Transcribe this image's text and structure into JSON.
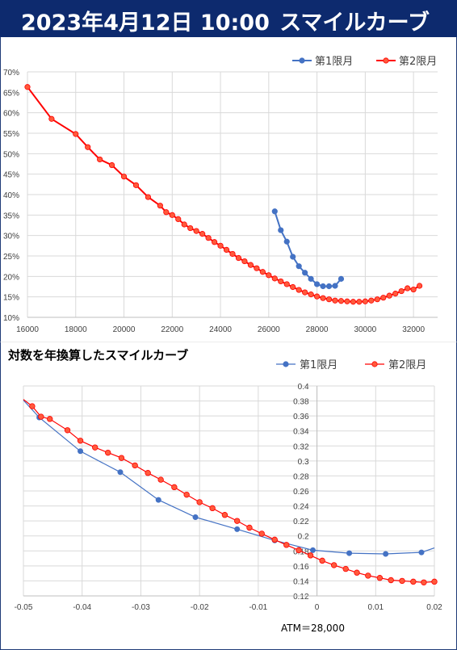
{
  "header": {
    "date": "2023年4月12日 10:00",
    "title": "スマイルカーブ"
  },
  "colors": {
    "header_bg": "#0d2a6e",
    "series1": "#4472c4",
    "series2": "#ff0000",
    "series2_fill": "#ff5a3c",
    "grid": "#d9d9d9"
  },
  "chart_data": [
    {
      "type": "line",
      "title": "",
      "xlim": [
        16000,
        33000
      ],
      "ylim": [
        0.1,
        0.7
      ],
      "x_ticks": [
        "16000",
        "18000",
        "20000",
        "22000",
        "24000",
        "26000",
        "28000",
        "30000",
        "32000"
      ],
      "y_ticks": [
        "10%",
        "15%",
        "20%",
        "25%",
        "30%",
        "35%",
        "40%",
        "45%",
        "50%",
        "55%",
        "60%",
        "65%",
        "70%"
      ],
      "legend": "top-right",
      "grid": true,
      "series": [
        {
          "name": "第1限月",
          "x": [
            26250,
            26500,
            26750,
            27000,
            27250,
            27500,
            27750,
            28000,
            28250,
            28500,
            28750,
            29000
          ],
          "y": [
            0.359,
            0.313,
            0.285,
            0.248,
            0.225,
            0.209,
            0.194,
            0.181,
            0.176,
            0.176,
            0.177,
            0.194
          ]
        },
        {
          "name": "第2限月",
          "x": [
            16000,
            17000,
            18000,
            18500,
            19000,
            19500,
            20000,
            20500,
            21000,
            21500,
            21750,
            22000,
            22250,
            22500,
            22750,
            23000,
            23250,
            23500,
            23750,
            24000,
            24250,
            24500,
            24750,
            25000,
            25250,
            25500,
            25750,
            26000,
            26250,
            26500,
            26750,
            27000,
            27250,
            27500,
            27750,
            28000,
            28250,
            28500,
            28750,
            29000,
            29250,
            29500,
            29750,
            30000,
            30250,
            30500,
            30750,
            31000,
            31250,
            31500,
            31750,
            32000,
            32250
          ],
          "y": [
            0.663,
            0.585,
            0.548,
            0.516,
            0.486,
            0.472,
            0.444,
            0.423,
            0.394,
            0.373,
            0.357,
            0.35,
            0.34,
            0.327,
            0.318,
            0.311,
            0.304,
            0.294,
            0.284,
            0.275,
            0.265,
            0.255,
            0.245,
            0.237,
            0.228,
            0.22,
            0.211,
            0.203,
            0.195,
            0.188,
            0.181,
            0.174,
            0.167,
            0.161,
            0.156,
            0.151,
            0.147,
            0.144,
            0.141,
            0.14,
            0.139,
            0.138,
            0.138,
            0.139,
            0.141,
            0.144,
            0.148,
            0.153,
            0.158,
            0.164,
            0.171,
            0.168,
            0.177
          ]
        }
      ]
    },
    {
      "type": "line",
      "title": "対数を年換算したスマイルカーブ",
      "xlim": [
        -0.05,
        0.02
      ],
      "ylim": [
        0.12,
        0.4
      ],
      "x_ticks": [
        "-0.05",
        "-0.04",
        "-0.03",
        "-0.02",
        "-0.01",
        "0",
        "0.01",
        "0.02"
      ],
      "y_ticks": [
        "0.12",
        "0.14",
        "0.16",
        "0.18",
        "0.2",
        "0.22",
        "0.24",
        "0.26",
        "0.28",
        "0.3",
        "0.32",
        "0.34",
        "0.36",
        "0.38",
        "0.4"
      ],
      "legend": "top-right",
      "grid": true,
      "annotation": "ATM＝28,000",
      "series": [
        {
          "name": "第1限月",
          "x": [
            -0.0473,
            -0.0403,
            -0.0335,
            -0.027,
            -0.0207,
            -0.0136,
            -0.0072,
            -0.0007,
            0.0055,
            0.0117,
            0.0178
          ],
          "y": [
            0.358,
            0.313,
            0.285,
            0.248,
            0.225,
            0.209,
            0.194,
            0.181,
            0.177,
            0.176,
            0.178
          ],
          "curve_x": [
            -0.05,
            -0.0473,
            -0.0403,
            -0.0335,
            -0.027,
            -0.0207,
            -0.0136,
            -0.0072,
            -0.0007,
            0.0055,
            0.0117,
            0.0178,
            0.02
          ],
          "curve_y": [
            0.381,
            0.358,
            0.313,
            0.285,
            0.248,
            0.225,
            0.209,
            0.194,
            0.181,
            0.177,
            0.176,
            0.178,
            0.184
          ]
        },
        {
          "name": "第2限月",
          "x": [
            -0.0485,
            -0.047,
            -0.0455,
            -0.0425,
            -0.0403,
            -0.0378,
            -0.0356,
            -0.0333,
            -0.031,
            -0.0288,
            -0.0266,
            -0.0243,
            -0.0222,
            -0.02,
            -0.0178,
            -0.0157,
            -0.0136,
            -0.0115,
            -0.0094,
            -0.0072,
            -0.0052,
            -0.0031,
            -0.0011,
            0.0009,
            0.0029,
            0.0049,
            0.0068,
            0.0087,
            0.0107,
            0.0126,
            0.0145,
            0.0164,
            0.0182,
            0.02
          ],
          "y": [
            0.373,
            0.359,
            0.356,
            0.341,
            0.327,
            0.318,
            0.311,
            0.304,
            0.294,
            0.284,
            0.275,
            0.265,
            0.255,
            0.245,
            0.237,
            0.228,
            0.22,
            0.211,
            0.203,
            0.195,
            0.188,
            0.181,
            0.174,
            0.167,
            0.161,
            0.156,
            0.151,
            0.147,
            0.144,
            0.141,
            0.14,
            0.139,
            0.138,
            0.139
          ]
        }
      ]
    }
  ]
}
